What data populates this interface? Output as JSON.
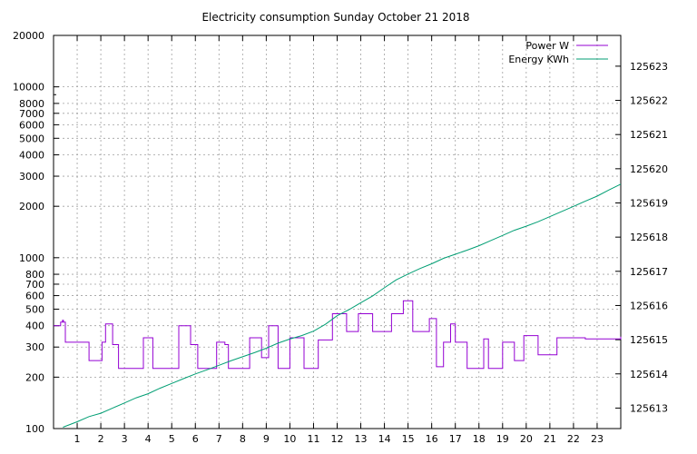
{
  "chart_data": {
    "type": "line",
    "title": "Electricity consumption Sunday October 21 2018",
    "xlabel": "",
    "ylabel": "",
    "y2label": "",
    "grid": true,
    "legend_position": "top-right",
    "xlim": [
      0,
      24
    ],
    "ylim": [
      100,
      20000
    ],
    "yscale": "log",
    "y2lim": [
      125612.4,
      125623.9
    ],
    "x_ticks": [
      1,
      2,
      3,
      4,
      5,
      6,
      7,
      8,
      9,
      10,
      11,
      12,
      13,
      14,
      15,
      16,
      17,
      18,
      19,
      20,
      21,
      22,
      23
    ],
    "y_ticks": [
      {
        "value": 100,
        "label": "100"
      },
      {
        "value": 200,
        "label": "200"
      },
      {
        "value": 300,
        "label": "300"
      },
      {
        "value": 400,
        "label": "400"
      },
      {
        "value": 500,
        "label": "500"
      },
      {
        "value": 600,
        "label": "600"
      },
      {
        "value": 700,
        "label": "700"
      },
      {
        "value": 800,
        "label": "800"
      },
      {
        "value": 1000,
        "label": "1000"
      },
      {
        "value": 2000,
        "label": "2000"
      },
      {
        "value": 3000,
        "label": "3000"
      },
      {
        "value": 4000,
        "label": "4000"
      },
      {
        "value": 5000,
        "label": "5000"
      },
      {
        "value": 6000,
        "label": "6000"
      },
      {
        "value": 7000,
        "label": "7000"
      },
      {
        "value": 8000,
        "label": "8000"
      },
      {
        "value": 10000,
        "label": "10000"
      },
      {
        "value": 20000,
        "label": "20000"
      }
    ],
    "y2_ticks": [
      125613,
      125614,
      125615,
      125616,
      125617,
      125618,
      125619,
      125620,
      125621,
      125622,
      125623
    ],
    "series": [
      {
        "name": "Power W",
        "axis": "left",
        "color": "#9400d3",
        "step": true,
        "x": [
          0,
          0.3,
          0.38,
          0.42,
          0.5,
          1.0,
          1.1,
          1.5,
          2.0,
          2.05,
          2.2,
          2.5,
          2.75,
          3.2,
          3.8,
          3.9,
          4.2,
          4.5,
          4.9,
          5.3,
          5.7,
          5.8,
          6.1,
          6.5,
          6.9,
          7.1,
          7.25,
          7.4,
          7.9,
          8.3,
          8.8,
          8.9,
          9.1,
          9.3,
          9.5,
          9.8,
          10.0,
          10.4,
          10.6,
          11.0,
          11.2,
          11.8,
          12.2,
          12.4,
          12.9,
          13.5,
          14.0,
          14.3,
          14.6,
          14.8,
          15.2,
          15.9,
          16.1,
          16.2,
          16.3,
          16.4,
          16.5,
          16.8,
          17.0,
          17.2,
          17.5,
          18.2,
          18.4,
          18.6,
          19.0,
          19.4,
          19.5,
          19.9,
          20.1,
          20.5,
          20.9,
          21.3,
          22.5,
          23.5,
          24
        ],
        "y": [
          400,
          420,
          430,
          420,
          320,
          320,
          320,
          250,
          250,
          320,
          410,
          310,
          225,
          225,
          340,
          340,
          225,
          225,
          225,
          400,
          400,
          310,
          225,
          225,
          320,
          320,
          310,
          225,
          225,
          340,
          260,
          260,
          400,
          400,
          225,
          225,
          340,
          340,
          225,
          225,
          330,
          470,
          470,
          370,
          470,
          370,
          370,
          470,
          470,
          560,
          370,
          440,
          440,
          230,
          230,
          230,
          320,
          410,
          320,
          320,
          225,
          335,
          225,
          225,
          320,
          320,
          250,
          350,
          350,
          270,
          270,
          340,
          335,
          335,
          345
        ]
      },
      {
        "name": "Energy KWh",
        "axis": "right",
        "color": "#009e73",
        "step": false,
        "x": [
          0.4,
          1.0,
          1.5,
          2.0,
          2.5,
          3.0,
          3.5,
          4.0,
          4.5,
          5.0,
          5.5,
          6.0,
          6.5,
          7.0,
          7.5,
          8.0,
          8.5,
          9.0,
          9.5,
          10.0,
          10.5,
          11.0,
          11.5,
          12.0,
          12.5,
          13.0,
          13.5,
          14.0,
          14.5,
          15.0,
          15.5,
          16.0,
          16.5,
          17.0,
          17.5,
          18.0,
          18.5,
          19.0,
          19.5,
          20.0,
          20.5,
          21.0,
          21.5,
          22.0,
          22.5,
          23.0,
          23.5,
          24.0
        ],
        "y": [
          125612.44,
          125612.6,
          125612.75,
          125612.85,
          125613.0,
          125613.15,
          125613.3,
          125613.42,
          125613.58,
          125613.72,
          125613.86,
          125614.0,
          125614.12,
          125614.25,
          125614.38,
          125614.5,
          125614.62,
          125614.75,
          125614.9,
          125615.02,
          125615.12,
          125615.25,
          125615.45,
          125615.7,
          125615.88,
          125616.08,
          125616.28,
          125616.52,
          125616.75,
          125616.92,
          125617.08,
          125617.22,
          125617.38,
          125617.5,
          125617.62,
          125617.75,
          125617.9,
          125618.05,
          125618.2,
          125618.32,
          125618.45,
          125618.6,
          125618.75,
          125618.9,
          125619.05,
          125619.2,
          125619.38,
          125619.55
        ]
      }
    ]
  }
}
